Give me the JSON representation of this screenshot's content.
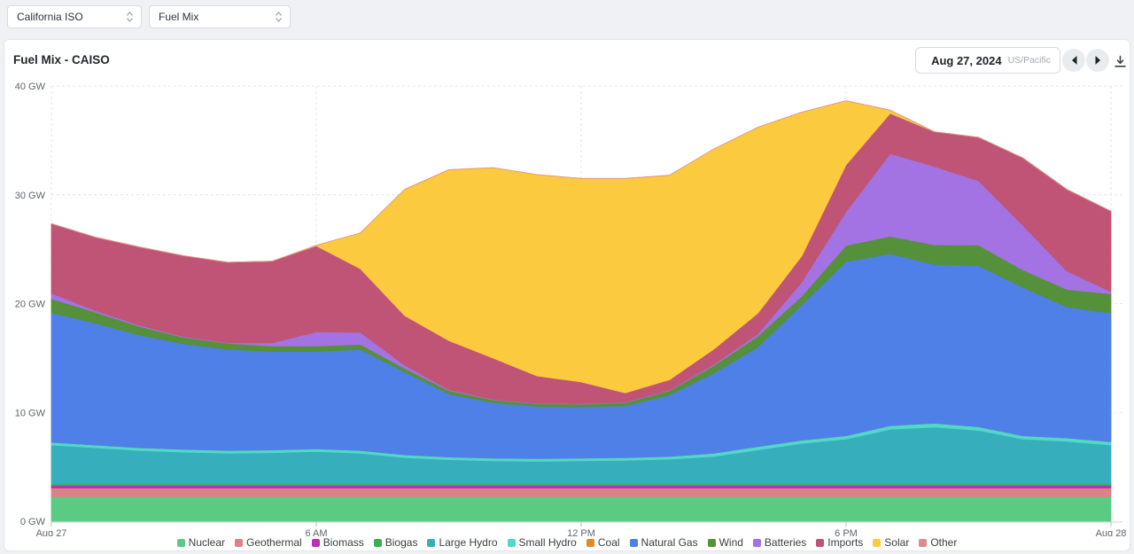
{
  "toolbar": {
    "region_select": {
      "value": "California ISO"
    },
    "view_select": {
      "value": "Fuel Mix"
    }
  },
  "header": {
    "title": "Fuel Mix - CAISO",
    "date": "Aug 27, 2024",
    "timezone": "US/Pacific"
  },
  "chart_data": {
    "type": "area",
    "stacked": true,
    "unit": "GW",
    "ylim": [
      0,
      40
    ],
    "x_hours": [
      0,
      1,
      2,
      3,
      4,
      5,
      6,
      7,
      8,
      9,
      10,
      11,
      12,
      13,
      14,
      15,
      16,
      17,
      18,
      19,
      20,
      21,
      22,
      23,
      24
    ],
    "xticks": [
      {
        "hour": 0,
        "label": "Aug 27"
      },
      {
        "hour": 6,
        "label": "6 AM"
      },
      {
        "hour": 12,
        "label": "12 PM"
      },
      {
        "hour": 18,
        "label": "6 PM"
      },
      {
        "hour": 24,
        "label": "Aug 28"
      }
    ],
    "yticks": [
      {
        "value": 0,
        "label": "0 GW"
      },
      {
        "value": 10,
        "label": "10 GW"
      },
      {
        "value": 20,
        "label": "20 GW"
      },
      {
        "value": 30,
        "label": "30 GW"
      },
      {
        "value": 40,
        "label": "40 GW"
      }
    ],
    "legend_position": "bottom",
    "grid": "dashed",
    "series": [
      {
        "name": "Nuclear",
        "color": "#5BCB84",
        "values": [
          2.25,
          2.25,
          2.25,
          2.25,
          2.25,
          2.25,
          2.25,
          2.25,
          2.25,
          2.25,
          2.25,
          2.25,
          2.25,
          2.25,
          2.25,
          2.25,
          2.25,
          2.25,
          2.25,
          2.25,
          2.25,
          2.25,
          2.25,
          2.25,
          2.25
        ]
      },
      {
        "name": "Geothermal",
        "color": "#D9828A",
        "values": [
          0.8,
          0.8,
          0.8,
          0.8,
          0.8,
          0.8,
          0.8,
          0.8,
          0.8,
          0.8,
          0.8,
          0.8,
          0.8,
          0.8,
          0.8,
          0.8,
          0.8,
          0.8,
          0.8,
          0.8,
          0.8,
          0.8,
          0.8,
          0.8,
          0.8
        ]
      },
      {
        "name": "Biomass",
        "color": "#BE2FB4",
        "values": [
          0.25,
          0.25,
          0.25,
          0.25,
          0.25,
          0.25,
          0.25,
          0.25,
          0.25,
          0.25,
          0.25,
          0.25,
          0.25,
          0.25,
          0.25,
          0.25,
          0.25,
          0.25,
          0.25,
          0.25,
          0.25,
          0.25,
          0.25,
          0.25,
          0.25
        ]
      },
      {
        "name": "Biogas",
        "color": "#3EAE55",
        "values": [
          0.15,
          0.15,
          0.15,
          0.15,
          0.15,
          0.15,
          0.15,
          0.15,
          0.15,
          0.15,
          0.15,
          0.15,
          0.15,
          0.15,
          0.15,
          0.15,
          0.15,
          0.15,
          0.15,
          0.15,
          0.15,
          0.15,
          0.15,
          0.15,
          0.15
        ]
      },
      {
        "name": "Large Hydro",
        "color": "#37AEBC",
        "values": [
          3.55,
          3.3,
          3.05,
          2.9,
          2.8,
          2.85,
          2.95,
          2.8,
          2.4,
          2.2,
          2.1,
          2.05,
          2.1,
          2.15,
          2.25,
          2.5,
          3.1,
          3.7,
          4.1,
          5.0,
          5.2,
          4.9,
          4.1,
          3.9,
          3.55
        ]
      },
      {
        "name": "Small Hydro",
        "color": "#50D9C6",
        "values": [
          0.25,
          0.25,
          0.25,
          0.25,
          0.25,
          0.25,
          0.25,
          0.25,
          0.25,
          0.25,
          0.25,
          0.25,
          0.25,
          0.25,
          0.25,
          0.3,
          0.3,
          0.3,
          0.3,
          0.33,
          0.35,
          0.33,
          0.3,
          0.3,
          0.3
        ]
      },
      {
        "name": "Coal",
        "color": "#E08A2F",
        "values": [
          0,
          0,
          0,
          0,
          0,
          0,
          0,
          0,
          0,
          0,
          0,
          0,
          0,
          0,
          0,
          0,
          0,
          0,
          0,
          0,
          0,
          0,
          0,
          0,
          0
        ]
      },
      {
        "name": "Natural Gas",
        "color": "#4E80E8",
        "values": [
          11.9,
          11.2,
          10.35,
          9.7,
          9.3,
          9.05,
          8.95,
          9.3,
          7.6,
          5.8,
          5.1,
          4.8,
          4.7,
          4.75,
          5.65,
          7.35,
          9.15,
          12.45,
          16.0,
          15.8,
          14.6,
          14.8,
          13.65,
          12.05,
          11.8
        ]
      },
      {
        "name": "Wind",
        "color": "#55913A",
        "values": [
          1.3,
          1.0,
          0.8,
          0.6,
          0.55,
          0.5,
          0.5,
          0.45,
          0.35,
          0.3,
          0.25,
          0.25,
          0.25,
          0.3,
          0.4,
          0.7,
          1.0,
          0.8,
          1.5,
          1.6,
          1.8,
          1.9,
          1.6,
          1.6,
          1.8
        ]
      },
      {
        "name": "Batteries",
        "color": "#A372E3",
        "values": [
          0.5,
          0.15,
          0.1,
          0.05,
          0.05,
          0.3,
          1.3,
          1.1,
          0.3,
          0.1,
          0.05,
          0.05,
          0.05,
          0.05,
          0.05,
          0.1,
          0.2,
          1.3,
          3.1,
          7.6,
          7.2,
          5.9,
          4.1,
          1.7,
          0.2
        ]
      },
      {
        "name": "Imports",
        "color": "#C05476",
        "values": [
          6.4,
          6.75,
          7.2,
          7.45,
          7.4,
          7.5,
          7.9,
          5.85,
          4.55,
          4.5,
          3.8,
          2.5,
          2.0,
          0.85,
          0.95,
          1.4,
          1.9,
          2.4,
          4.3,
          3.7,
          3.2,
          4.0,
          6.2,
          7.5,
          7.4
        ]
      },
      {
        "name": "Solar",
        "color": "#FCCA3F",
        "values": [
          0,
          0,
          0,
          0,
          0,
          0,
          0.05,
          3.3,
          11.6,
          15.7,
          17.5,
          18.5,
          18.7,
          19.7,
          18.8,
          18.4,
          17.1,
          13.2,
          5.9,
          0.3,
          0,
          0,
          0,
          0,
          0
        ]
      },
      {
        "name": "Other",
        "color": "#DB8C92",
        "values": [
          0,
          0,
          0,
          0,
          0,
          0,
          0,
          0,
          0,
          0,
          0,
          0,
          0,
          0,
          0,
          0,
          0,
          0,
          0,
          0,
          0,
          0,
          0,
          0,
          0
        ]
      }
    ]
  }
}
